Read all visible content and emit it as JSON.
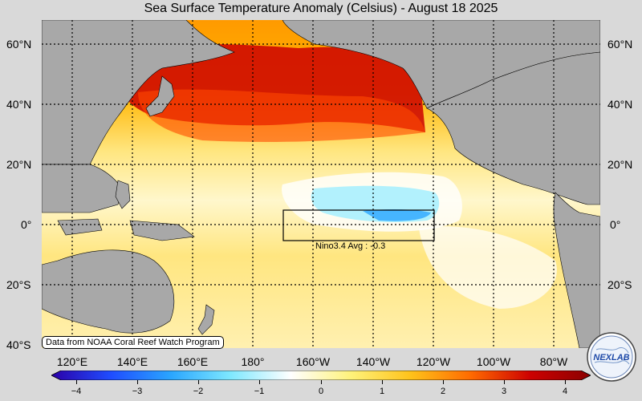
{
  "title": "Sea Surface Temperature Anomaly (Celsius) - August 18 2025",
  "lat_labels": [
    "60°N",
    "40°N",
    "20°N",
    "0°",
    "20°S",
    "40°S"
  ],
  "lon_labels": [
    "120°E",
    "140°E",
    "160°E",
    "180°",
    "160°W",
    "140°W",
    "120°W",
    "100°W",
    "80°W"
  ],
  "nino_box": {
    "label": "Nino3.4 Avg : -0.3"
  },
  "credit": "Data from NOAA Coral Reef Watch Program",
  "colorbar": {
    "ticks": [
      "−4",
      "−3",
      "−2",
      "−1",
      "0",
      "1",
      "2",
      "3",
      "4"
    ],
    "colors": [
      "#2b00a8",
      "#1f4dff",
      "#2aa6ff",
      "#7fe8ff",
      "#ffffff",
      "#fff27a",
      "#ffc21a",
      "#ff6a00",
      "#cc0000",
      "#8a0000"
    ]
  },
  "logo": {
    "text": "NEXLAB"
  },
  "colors": {
    "land": "#a8a8a8",
    "background": "#d9d9d9",
    "ocean_warm": "#ffe17a"
  }
}
